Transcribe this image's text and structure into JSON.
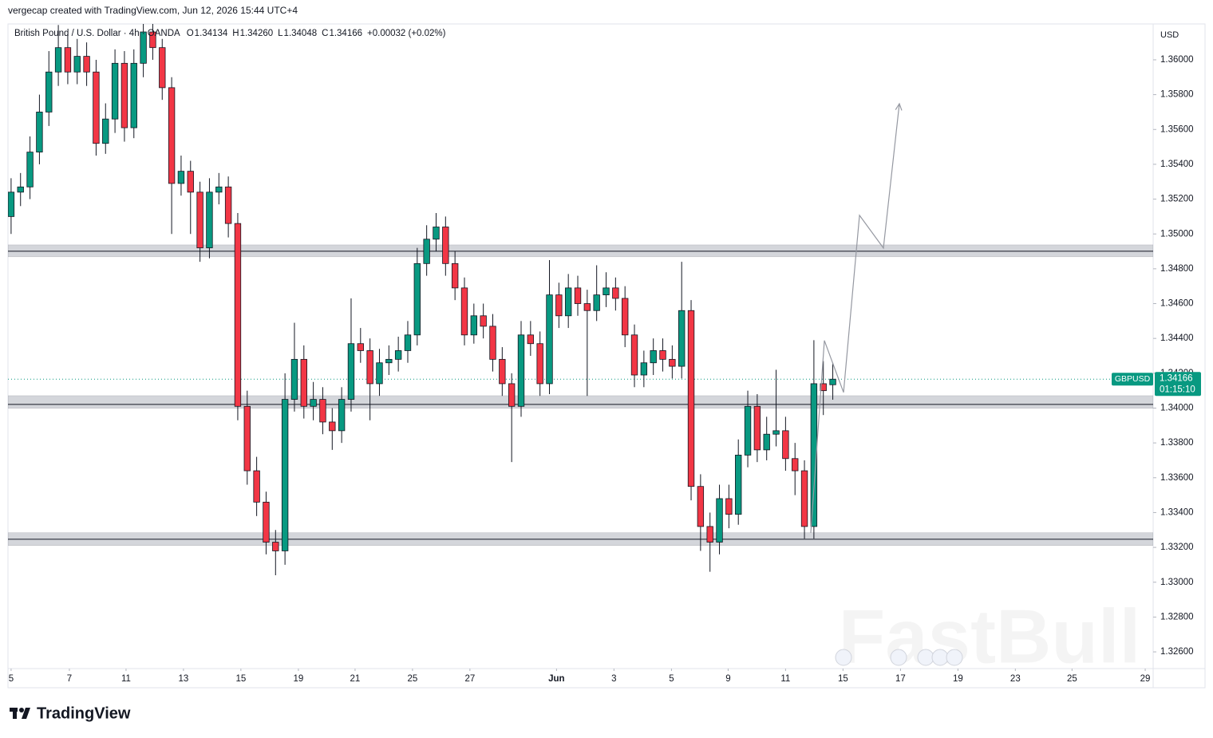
{
  "chart_data": {
    "type": "candlestick",
    "credit": "vergecap created with TradingView.com, Jun 12, 2026 15:44 UTC+4",
    "symbol": "British Pound / U.S. Dollar · 4h · OANDA",
    "ohlc_prefixes": [
      "O",
      "H",
      "L",
      "C"
    ],
    "change": "+0.00032 (+0.02%)",
    "currency": "USD",
    "ticker": "GBPUSD",
    "current_price": 1.34166,
    "countdown": "01:15:10",
    "brand": "TradingView",
    "watermark": "FastBull",
    "up_color": "#089981",
    "down_color": "#f23645",
    "series": [
      {
        "name": "GBPUSD",
        "x": [
          0,
          1,
          2,
          3,
          4,
          5,
          6,
          7,
          8,
          9,
          10,
          11,
          12,
          13,
          14,
          15,
          16,
          17,
          18,
          19,
          20,
          21,
          22,
          23,
          24,
          25,
          26,
          27,
          28,
          29,
          30,
          31,
          32,
          33,
          34,
          35,
          36,
          37,
          38,
          39,
          40,
          41,
          42,
          43,
          44,
          45,
          46,
          47,
          48,
          49,
          50,
          51,
          52,
          53,
          54,
          55,
          56,
          57,
          58,
          59,
          60,
          61,
          62,
          63,
          64,
          65,
          66,
          67,
          68,
          69,
          70,
          71,
          72,
          73,
          74,
          75,
          76,
          77,
          78,
          79,
          80,
          81,
          82,
          83,
          84,
          85,
          86,
          87
        ],
        "open": [
          1.351,
          1.3524,
          1.3527,
          1.3547,
          1.357,
          1.3593,
          1.3607,
          1.3593,
          1.3602,
          1.3593,
          1.3552,
          1.3566,
          1.3598,
          1.3561,
          1.3598,
          1.3616,
          1.3607,
          1.3584,
          1.3529,
          1.3536,
          1.3524,
          1.3492,
          1.3524,
          1.3527,
          1.3506,
          1.3401,
          1.3364,
          1.3346,
          1.3323,
          1.3318,
          1.3405,
          1.3428,
          1.3401,
          1.3405,
          1.3392,
          1.3387,
          1.3405,
          1.3437,
          1.3433,
          1.3414,
          1.3426,
          1.3428,
          1.3433,
          1.3442,
          1.3483,
          1.3497,
          1.3504,
          1.3483,
          1.3469,
          1.3442,
          1.3453,
          1.3447,
          1.3428,
          1.3414,
          1.3401,
          1.3442,
          1.3437,
          1.3414,
          1.3465,
          1.3453,
          1.3469,
          1.346,
          1.3456,
          1.3465,
          1.3469,
          1.3463,
          1.3442,
          1.3419,
          1.3426,
          1.3433,
          1.3428,
          1.3424,
          1.3456,
          1.3355,
          1.3332,
          1.3323,
          1.3348,
          1.3339,
          1.3373,
          1.3401,
          1.3376,
          1.3385,
          1.3387,
          1.3371,
          1.3364,
          1.3332,
          1.3414,
          1.34134
        ],
        "high": [
          1.3532,
          1.3535,
          1.3556,
          1.358,
          1.3605,
          1.362,
          1.3615,
          1.3612,
          1.361,
          1.36,
          1.3575,
          1.3606,
          1.3605,
          1.3606,
          1.3625,
          1.3622,
          1.3612,
          1.359,
          1.3545,
          1.3542,
          1.353,
          1.3532,
          1.3535,
          1.3533,
          1.3512,
          1.341,
          1.3372,
          1.3352,
          1.333,
          1.342,
          1.3449,
          1.3436,
          1.3415,
          1.3412,
          1.34,
          1.3412,
          1.3463,
          1.3446,
          1.344,
          1.3434,
          1.3436,
          1.3441,
          1.345,
          1.3492,
          1.3505,
          1.3512,
          1.351,
          1.349,
          1.3475,
          1.346,
          1.346,
          1.3454,
          1.3435,
          1.342,
          1.345,
          1.345,
          1.3444,
          1.3485,
          1.3472,
          1.3477,
          1.3476,
          1.3468,
          1.3482,
          1.3478,
          1.3475,
          1.347,
          1.3448,
          1.3433,
          1.344,
          1.344,
          1.3436,
          1.3484,
          1.3462,
          1.3362,
          1.334,
          1.3356,
          1.3356,
          1.3382,
          1.341,
          1.3408,
          1.3395,
          1.3422,
          1.3395,
          1.338,
          1.337,
          1.3439,
          1.3427,
          1.3426
        ],
        "low": [
          1.35,
          1.3516,
          1.352,
          1.354,
          1.3562,
          1.3585,
          1.3586,
          1.3586,
          1.3585,
          1.3545,
          1.3546,
          1.3558,
          1.3553,
          1.3555,
          1.359,
          1.36,
          1.3577,
          1.35,
          1.3522,
          1.35,
          1.3484,
          1.3486,
          1.3517,
          1.3498,
          1.3393,
          1.3356,
          1.3338,
          1.3316,
          1.3304,
          1.331,
          1.3398,
          1.3394,
          1.3393,
          1.3385,
          1.3376,
          1.338,
          1.3398,
          1.3426,
          1.3393,
          1.3407,
          1.3419,
          1.3421,
          1.3426,
          1.3436,
          1.3476,
          1.349,
          1.3476,
          1.3462,
          1.3436,
          1.3437,
          1.344,
          1.3421,
          1.3407,
          1.3369,
          1.3395,
          1.343,
          1.3407,
          1.3408,
          1.3446,
          1.3446,
          1.3453,
          1.3407,
          1.345,
          1.3458,
          1.3456,
          1.3435,
          1.3412,
          1.3412,
          1.3419,
          1.3421,
          1.3417,
          1.3417,
          1.3347,
          1.3318,
          1.3306,
          1.3316,
          1.3331,
          1.3333,
          1.3366,
          1.3369,
          1.337,
          1.3378,
          1.3364,
          1.335,
          1.3325,
          1.3325,
          1.3396,
          1.34048
        ],
        "close": [
          1.3524,
          1.3527,
          1.3547,
          1.357,
          1.3593,
          1.3607,
          1.3593,
          1.3602,
          1.3593,
          1.3552,
          1.3566,
          1.3598,
          1.3561,
          1.3598,
          1.3616,
          1.3607,
          1.3584,
          1.3529,
          1.3536,
          1.3524,
          1.3492,
          1.3524,
          1.3527,
          1.3506,
          1.3401,
          1.3364,
          1.3346,
          1.3323,
          1.3318,
          1.3405,
          1.3428,
          1.3401,
          1.3405,
          1.3392,
          1.3387,
          1.3405,
          1.3437,
          1.3433,
          1.3414,
          1.3426,
          1.3428,
          1.3433,
          1.3442,
          1.3483,
          1.3497,
          1.3504,
          1.3483,
          1.3469,
          1.3442,
          1.3453,
          1.3447,
          1.3428,
          1.3414,
          1.3401,
          1.3442,
          1.3437,
          1.3414,
          1.3465,
          1.3453,
          1.3469,
          1.346,
          1.3456,
          1.3465,
          1.3469,
          1.3463,
          1.3442,
          1.3419,
          1.3426,
          1.3433,
          1.3428,
          1.3424,
          1.3456,
          1.3355,
          1.3332,
          1.3323,
          1.3348,
          1.3339,
          1.3373,
          1.3401,
          1.3376,
          1.3385,
          1.3387,
          1.3371,
          1.3364,
          1.3332,
          1.3414,
          1.341,
          1.34166
        ]
      }
    ],
    "zones": [
      {
        "low": 1.34869,
        "high": 1.34937,
        "line": 1.34901
      },
      {
        "low": 1.33999,
        "high": 1.34071,
        "line": 1.34021
      },
      {
        "low": 1.33211,
        "high": 1.33284,
        "line": 1.33247
      }
    ],
    "projection": {
      "x": [
        84.67,
        86.11,
        88.14,
        89.83,
        92.36,
        94.05
      ],
      "y": [
        1.33284,
        1.34388,
        1.3409,
        1.35107,
        1.34919,
        1.35748
      ]
    },
    "xlim": [
      -0.33,
      120.92
    ],
    "xticks": [
      {
        "value": 0,
        "label": "5"
      },
      {
        "value": 6.17,
        "label": "7"
      },
      {
        "value": 12.17,
        "label": "11"
      },
      {
        "value": 18.25,
        "label": "13"
      },
      {
        "value": 24.33,
        "label": "15"
      },
      {
        "value": 30.42,
        "label": "19"
      },
      {
        "value": 36.42,
        "label": "21"
      },
      {
        "value": 42.5,
        "label": "25"
      },
      {
        "value": 48.58,
        "label": "27"
      },
      {
        "value": 57.75,
        "label": "Jun"
      },
      {
        "value": 63.83,
        "label": "3"
      },
      {
        "value": 69.92,
        "label": "5"
      },
      {
        "value": 75.92,
        "label": "9"
      },
      {
        "value": 82,
        "label": "11"
      },
      {
        "value": 88.08,
        "label": "15"
      },
      {
        "value": 94.17,
        "label": "17"
      },
      {
        "value": 100.25,
        "label": "19"
      },
      {
        "value": 106.33,
        "label": "23"
      },
      {
        "value": 112.33,
        "label": "25"
      },
      {
        "value": 120.08,
        "label": "29"
      }
    ],
    "ylim": [
      1.32504,
      1.36206
    ],
    "yticks": [
      {
        "value": 1.326,
        "label": "1.32600"
      },
      {
        "value": 1.328,
        "label": "1.32800"
      },
      {
        "value": 1.33,
        "label": "1.33000"
      },
      {
        "value": 1.332,
        "label": "1.33200"
      },
      {
        "value": 1.334,
        "label": "1.33400"
      },
      {
        "value": 1.336,
        "label": "1.33600"
      },
      {
        "value": 1.338,
        "label": "1.33800"
      },
      {
        "value": 1.34,
        "label": "1.34000"
      },
      {
        "value": 1.342,
        "label": "1.34200"
      },
      {
        "value": 1.344,
        "label": "1.34400"
      },
      {
        "value": 1.346,
        "label": "1.34600"
      },
      {
        "value": 1.348,
        "label": "1.34800"
      },
      {
        "value": 1.35,
        "label": "1.35000"
      },
      {
        "value": 1.352,
        "label": "1.35200"
      },
      {
        "value": 1.354,
        "label": "1.35400"
      },
      {
        "value": 1.356,
        "label": "1.35600"
      },
      {
        "value": 1.358,
        "label": "1.35800"
      },
      {
        "value": 1.36,
        "label": "1.36000"
      }
    ],
    "grid": false
  }
}
